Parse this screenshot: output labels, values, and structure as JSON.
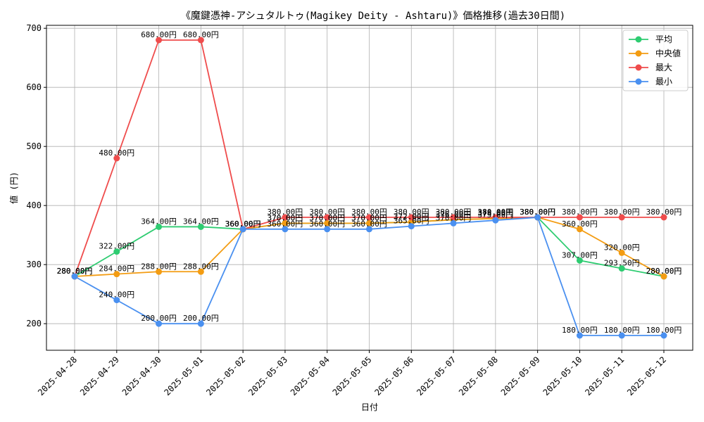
{
  "chart_data": {
    "type": "line",
    "title": "《魔鍵憑神-アシュタルトゥ(Magikey Deity - Ashtaru)》価格推移(過去30日間)",
    "xlabel": "日付",
    "ylabel": "値 (円)",
    "ylim": [
      155,
      705
    ],
    "yticks": [
      200,
      300,
      400,
      500,
      600,
      700
    ],
    "grid": true,
    "legend_position": "top-right",
    "label_suffix": "円",
    "categories": [
      "2025-04-28",
      "2025-04-29",
      "2025-04-30",
      "2025-05-01",
      "2025-05-02",
      "2025-05-03",
      "2025-05-04",
      "2025-05-05",
      "2025-05-06",
      "2025-05-07",
      "2025-05-08",
      "2025-05-09",
      "2025-05-10",
      "2025-05-11",
      "2025-05-12"
    ],
    "series": [
      {
        "name": "平均",
        "color": "#2ecc71",
        "values": [
          280.0,
          322.0,
          364.0,
          364.0,
          360.0,
          370.0,
          370.0,
          370.0,
          372.0,
          376.0,
          378.0,
          380.0,
          307.0,
          293.5,
          280.0
        ]
      },
      {
        "name": "中央値",
        "color": "#f39c12",
        "values": [
          280.0,
          284.0,
          288.0,
          288.0,
          360.0,
          370.0,
          370.0,
          370.0,
          372.0,
          376.0,
          378.0,
          380.0,
          360.0,
          320.0,
          280.0
        ]
      },
      {
        "name": "最大",
        "color": "#ef4c4c",
        "values": [
          280.0,
          480.0,
          680.0,
          680.0,
          360.0,
          380.0,
          380.0,
          380.0,
          380.0,
          380.0,
          380.0,
          380.0,
          380.0,
          380.0,
          380.0
        ]
      },
      {
        "name": "最小",
        "color": "#4a90f0",
        "values": [
          280.0,
          240.0,
          200.0,
          200.0,
          360.0,
          360.0,
          360.0,
          360.0,
          365.0,
          370.0,
          375.0,
          380.0,
          180.0,
          180.0,
          180.0
        ]
      }
    ]
  }
}
